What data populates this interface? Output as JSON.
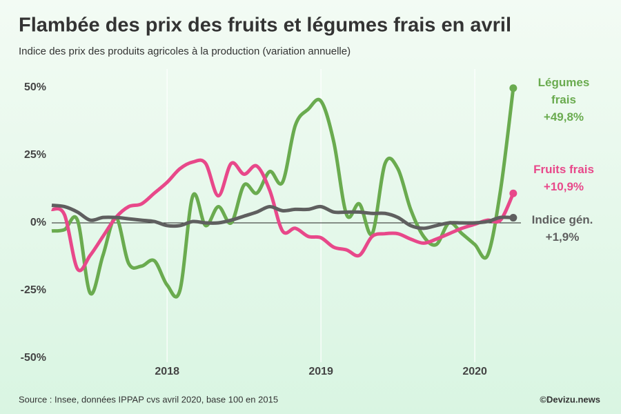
{
  "chart_data": {
    "type": "line",
    "title": "Flambée des prix des fruits et légumes frais en avril",
    "subtitle": "Indice des prix des produits agricoles à la production (variation annuelle)",
    "source": "Source : Insee, données IPPAP cvs avril 2020, base 100 en 2015",
    "credit": "©Devizu.news",
    "x": [
      2017.25,
      2017.333,
      2017.417,
      2017.5,
      2017.583,
      2017.667,
      2017.75,
      2017.833,
      2017.917,
      2018,
      2018.083,
      2018.167,
      2018.25,
      2018.333,
      2018.417,
      2018.5,
      2018.583,
      2018.667,
      2018.75,
      2018.833,
      2018.917,
      2019,
      2019.083,
      2019.167,
      2019.25,
      2019.333,
      2019.417,
      2019.5,
      2019.583,
      2019.667,
      2019.75,
      2019.833,
      2019.917,
      2020,
      2020.083,
      2020.167,
      2020.25
    ],
    "xlim": [
      2017.25,
      2020.3
    ],
    "xticks": [
      2018,
      2019,
      2020
    ],
    "ylim": [
      -50,
      50
    ],
    "yticks": [
      {
        "value": 50,
        "label": "50%"
      },
      {
        "value": 25,
        "label": "25%"
      },
      {
        "value": 0,
        "label": "0%"
      },
      {
        "value": -25,
        "label": "-25%"
      },
      {
        "value": -50,
        "label": "-50%"
      }
    ],
    "zero_line": true,
    "series": [
      {
        "name": "Légumes frais",
        "color": "#6aab4f",
        "end_label": "+49,8%",
        "values": [
          -3,
          -2.5,
          1,
          -26,
          -12,
          2,
          -15,
          -16,
          -14,
          -23,
          -25,
          10,
          -1,
          6,
          0,
          14,
          11,
          19,
          15,
          36,
          42,
          45,
          30,
          3,
          7,
          -4,
          22,
          20,
          5,
          -5,
          -8,
          0,
          -4,
          -8,
          -12,
          12,
          49.8
        ]
      },
      {
        "name": "Fruits frais",
        "color": "#e8488a",
        "end_label": "+10,9%",
        "values": [
          5,
          3,
          -17,
          -12,
          -5,
          2,
          6,
          7,
          11,
          15,
          20,
          22.5,
          22,
          10,
          22,
          18,
          21,
          12,
          -3,
          -2,
          -5,
          -5.5,
          -9,
          -10,
          -12,
          -5,
          -4,
          -4,
          -6,
          -7.5,
          -6,
          -4,
          -2,
          -0.5,
          1,
          1,
          10.9
        ]
      },
      {
        "name": "Indice gén.",
        "color": "#5f5f5f",
        "end_label": "+1,9%",
        "values": [
          6.5,
          6,
          4,
          1,
          2,
          2,
          1.5,
          1,
          0.5,
          -1,
          -1,
          0.5,
          0,
          0,
          1,
          2.5,
          4,
          6,
          4.5,
          5,
          5,
          6,
          4,
          4,
          4,
          3.5,
          3.5,
          2,
          -1,
          -2,
          -1,
          0,
          0,
          0,
          0.5,
          2,
          1.9
        ]
      }
    ]
  }
}
